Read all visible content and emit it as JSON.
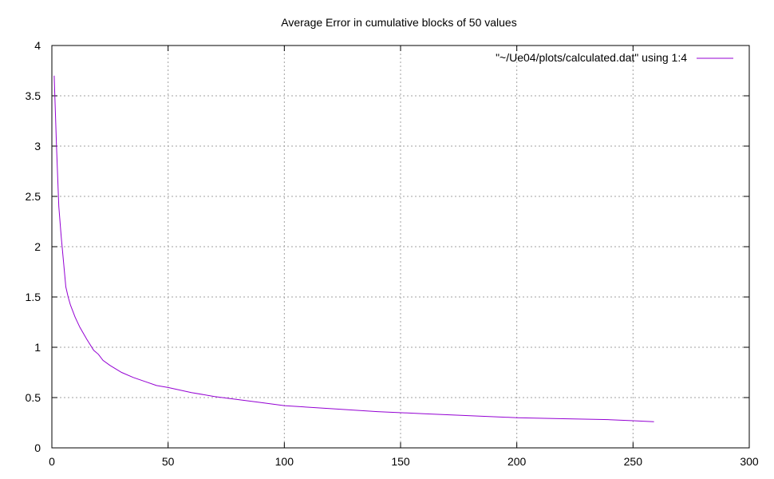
{
  "chart_data": {
    "type": "line",
    "title": "Average Error in cumulative blocks of 50 values",
    "xlabel": "",
    "ylabel": "",
    "xlim": [
      0,
      300
    ],
    "ylim": [
      0,
      4
    ],
    "x_ticks": [
      "0",
      "50",
      "100",
      "150",
      "200",
      "250",
      "300"
    ],
    "y_ticks": [
      "0",
      "0.5",
      "1",
      "1.5",
      "2",
      "2.5",
      "3",
      "3.5",
      "4"
    ],
    "grid": true,
    "legend_position": "top-right",
    "series": [
      {
        "name": "\"~/Ue04/plots/calculated.dat\" using 1:4",
        "color": "#9400d3",
        "x": [
          1,
          2,
          3,
          4,
          5,
          6,
          7,
          8,
          10,
          12,
          15,
          18,
          20,
          22,
          25,
          30,
          35,
          40,
          45,
          50,
          60,
          70,
          80,
          90,
          100,
          120,
          140,
          160,
          180,
          200,
          220,
          240,
          250,
          259
        ],
        "y": [
          3.7,
          3.0,
          2.4,
          2.1,
          1.85,
          1.6,
          1.5,
          1.42,
          1.3,
          1.2,
          1.08,
          0.97,
          0.93,
          0.87,
          0.82,
          0.75,
          0.7,
          0.66,
          0.62,
          0.6,
          0.55,
          0.51,
          0.48,
          0.45,
          0.42,
          0.39,
          0.36,
          0.34,
          0.32,
          0.3,
          0.29,
          0.28,
          0.27,
          0.26
        ]
      }
    ]
  }
}
